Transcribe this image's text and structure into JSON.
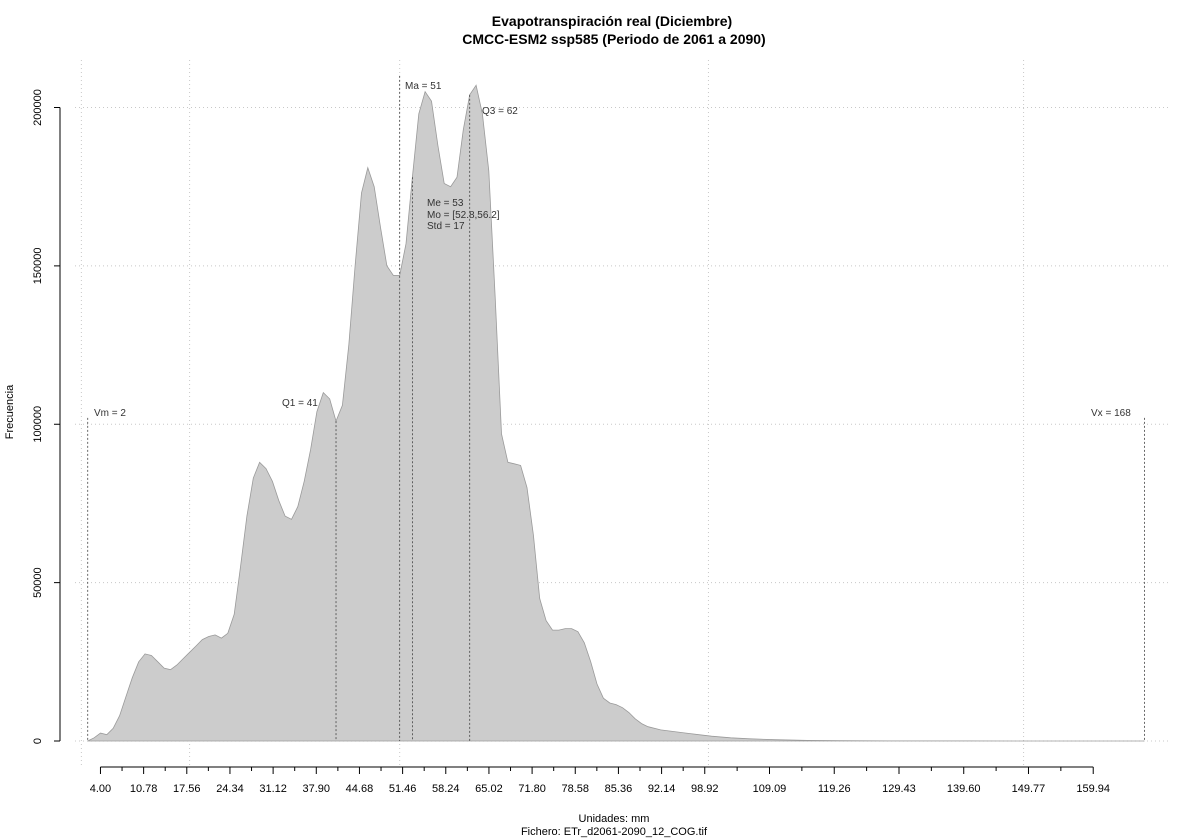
{
  "chart_data": {
    "type": "area",
    "title": "Evapotranspiración real (Diciembre)",
    "subtitle": "CMCC-ESM2 ssp585 (Periodo de 2061 a 2090)",
    "xlabel": "Unidades: mm",
    "caption": "Fichero: ETr_d2061-2090_12_COG.tif",
    "ylabel": "Frecuencia",
    "xlim": [
      0,
      172
    ],
    "ylim": [
      0,
      215000
    ],
    "grid": true,
    "x_ticks": [
      4.0,
      10.78,
      17.56,
      24.34,
      31.12,
      37.9,
      44.68,
      51.46,
      58.24,
      65.02,
      71.8,
      78.58,
      85.36,
      92.14,
      98.92,
      109.09,
      119.26,
      129.43,
      139.6,
      149.77,
      159.94
    ],
    "x_tick_labels": [
      "4.00",
      "10.78",
      "17.56",
      "24.34",
      "31.12",
      "37.90",
      "44.68",
      "51.46",
      "58.24",
      "65.02",
      "71.80",
      "78.58",
      "85.36",
      "92.14",
      "98.92",
      "109.09",
      "119.26",
      "129.43",
      "139.60",
      "149.77",
      "159.94"
    ],
    "y_ticks": [
      0,
      50000,
      100000,
      150000,
      200000
    ],
    "y_tick_labels": [
      "0",
      "50000",
      "100000",
      "150000",
      "200000"
    ],
    "x_grid": [
      1.0,
      18.0,
      51.0,
      99.5,
      149.0
    ],
    "series": [
      {
        "color": "#cccccc",
        "x": [
          2,
          3,
          4,
          5,
          6,
          7,
          8,
          9,
          10,
          11,
          12,
          13,
          14,
          15,
          16,
          17,
          18,
          19,
          20,
          21,
          22,
          23,
          24,
          25,
          26,
          27,
          28,
          29,
          30,
          31,
          32,
          33,
          34,
          35,
          36,
          37,
          38,
          39,
          40,
          41,
          42,
          43,
          44,
          45,
          46,
          47,
          48,
          49,
          50,
          51,
          52,
          53,
          54,
          55,
          56,
          57,
          58,
          59,
          60,
          61,
          62,
          63,
          64,
          65,
          66,
          67,
          68,
          69,
          70,
          71,
          72,
          73,
          74,
          75,
          76,
          77,
          78,
          79,
          80,
          81,
          82,
          83,
          84,
          85,
          86,
          87,
          88,
          89,
          90,
          92,
          94,
          96,
          98,
          100,
          103,
          106,
          110,
          115,
          120,
          130,
          140,
          150,
          160,
          168
        ],
        "y": [
          0,
          1000,
          2500,
          2000,
          4000,
          8000,
          14000,
          20000,
          25000,
          27500,
          27000,
          25000,
          23000,
          22500,
          24000,
          26000,
          28000,
          30000,
          32000,
          33000,
          33500,
          32500,
          34000,
          40000,
          55000,
          71000,
          83000,
          88000,
          86000,
          82000,
          76000,
          71000,
          70000,
          74000,
          82000,
          92000,
          104000,
          110000,
          108000,
          101000,
          106000,
          125000,
          150000,
          173000,
          181000,
          175000,
          162000,
          150000,
          147000,
          147000,
          157000,
          178000,
          198000,
          205000,
          202000,
          188000,
          176000,
          175000,
          178000,
          193000,
          204000,
          207000,
          198000,
          180000,
          140000,
          97000,
          88000,
          87500,
          87000,
          80000,
          65000,
          45000,
          38000,
          35000,
          35000,
          35500,
          35500,
          34500,
          31000,
          25000,
          18000,
          13500,
          12000,
          11500,
          10500,
          9000,
          7000,
          5500,
          4500,
          3500,
          3000,
          2500,
          2000,
          1500,
          1000,
          700,
          400,
          200,
          100,
          40,
          20,
          10,
          5,
          0
        ]
      }
    ],
    "annotations": {
      "vm": "Vm = 2",
      "q1": "Q1 = 41",
      "ma": "Ma = 51",
      "q3": "Q3 = 62",
      "me": "Me = 53",
      "mo": "Mo = [52.8,56.2]",
      "std": "Std = 17",
      "vx": "Vx = 168"
    },
    "vlines": {
      "vm": 2,
      "q1": 41,
      "ma": 51,
      "me": 53,
      "q3": 62,
      "vx": 168
    }
  }
}
